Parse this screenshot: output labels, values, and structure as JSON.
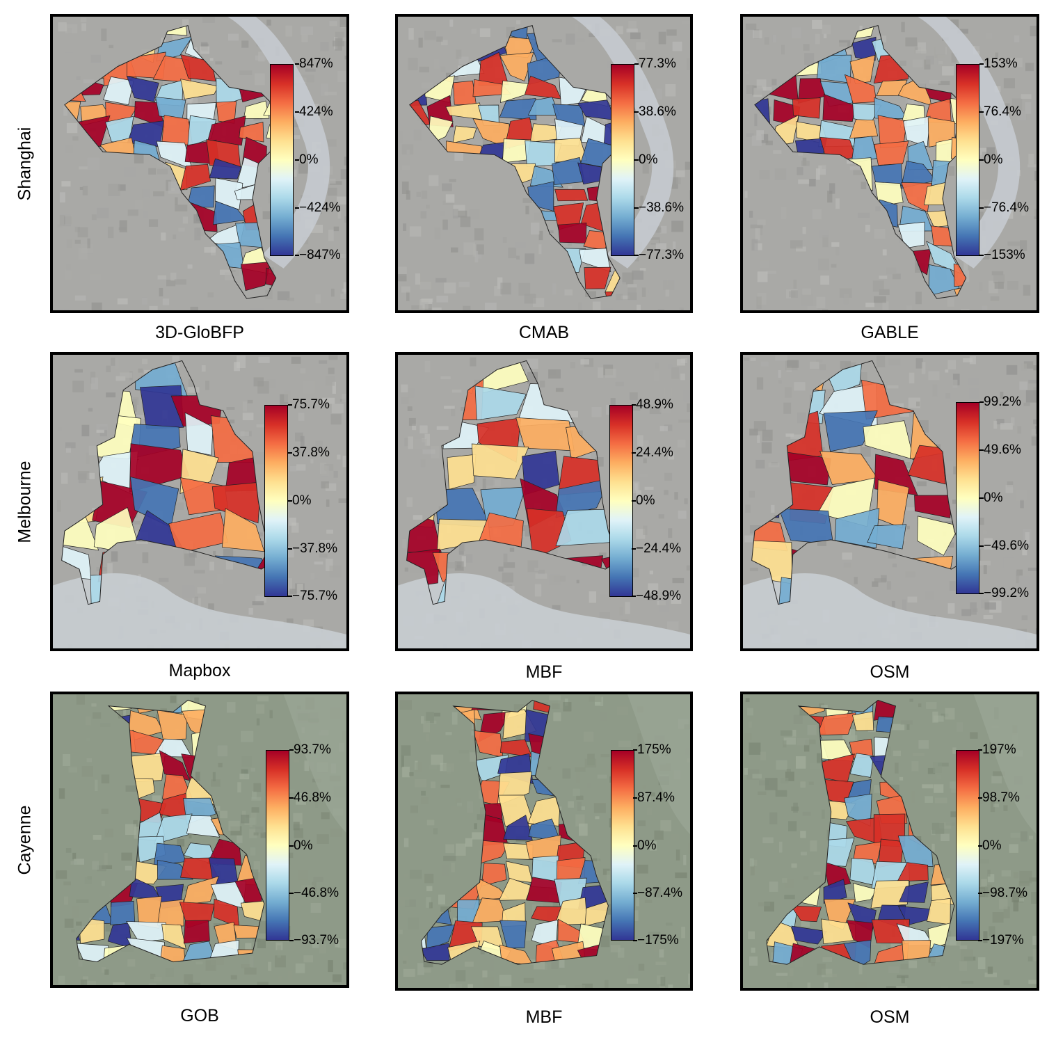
{
  "colors": {
    "scale": [
      "#313695",
      "#4575b4",
      "#74add1",
      "#abd9e9",
      "#e0f3f8",
      "#ffffbf",
      "#fee090",
      "#fdae61",
      "#f46d43",
      "#d73027",
      "#a50026"
    ],
    "satellite_city": "#a9a9a6",
    "satellite_green": "#8e9a88",
    "water": "#c8cdd2"
  },
  "rows": [
    {
      "label": "Shanghai",
      "panels": [
        {
          "caption": "3D-GloBFP",
          "ticks": [
            "847%",
            "424%",
            "0%",
            "−424%",
            "−847%"
          ]
        },
        {
          "caption": "CMAB",
          "ticks": [
            "77.3%",
            "38.6%",
            "0%",
            "−38.6%",
            "−77.3%"
          ]
        },
        {
          "caption": "GABLE",
          "ticks": [
            "153%",
            "76.4%",
            "0%",
            "−76.4%",
            "−153%"
          ]
        }
      ]
    },
    {
      "label": "Melbourne",
      "panels": [
        {
          "caption": "Mapbox",
          "ticks": [
            "75.7%",
            "37.8%",
            "0%",
            "−37.8%",
            "−75.7%"
          ]
        },
        {
          "caption": "MBF",
          "ticks": [
            "48.9%",
            "24.4%",
            "0%",
            "−24.4%",
            "−48.9%"
          ]
        },
        {
          "caption": "OSM",
          "ticks": [
            "99.2%",
            "49.6%",
            "0%",
            "−49.6%",
            "−99.2%"
          ]
        }
      ]
    },
    {
      "label": "Cayenne",
      "panels": [
        {
          "caption": "GOB",
          "ticks": [
            "93.7%",
            "46.8%",
            "0%",
            "−46.8%",
            "−93.7%"
          ]
        },
        {
          "caption": "MBF",
          "ticks": [
            "175%",
            "87.4%",
            "0%",
            "−87.4%",
            "−175%"
          ]
        },
        {
          "caption": "OSM",
          "ticks": [
            "197%",
            "98.7%",
            "0%",
            "−98.7%",
            "−197%"
          ]
        }
      ]
    }
  ]
}
